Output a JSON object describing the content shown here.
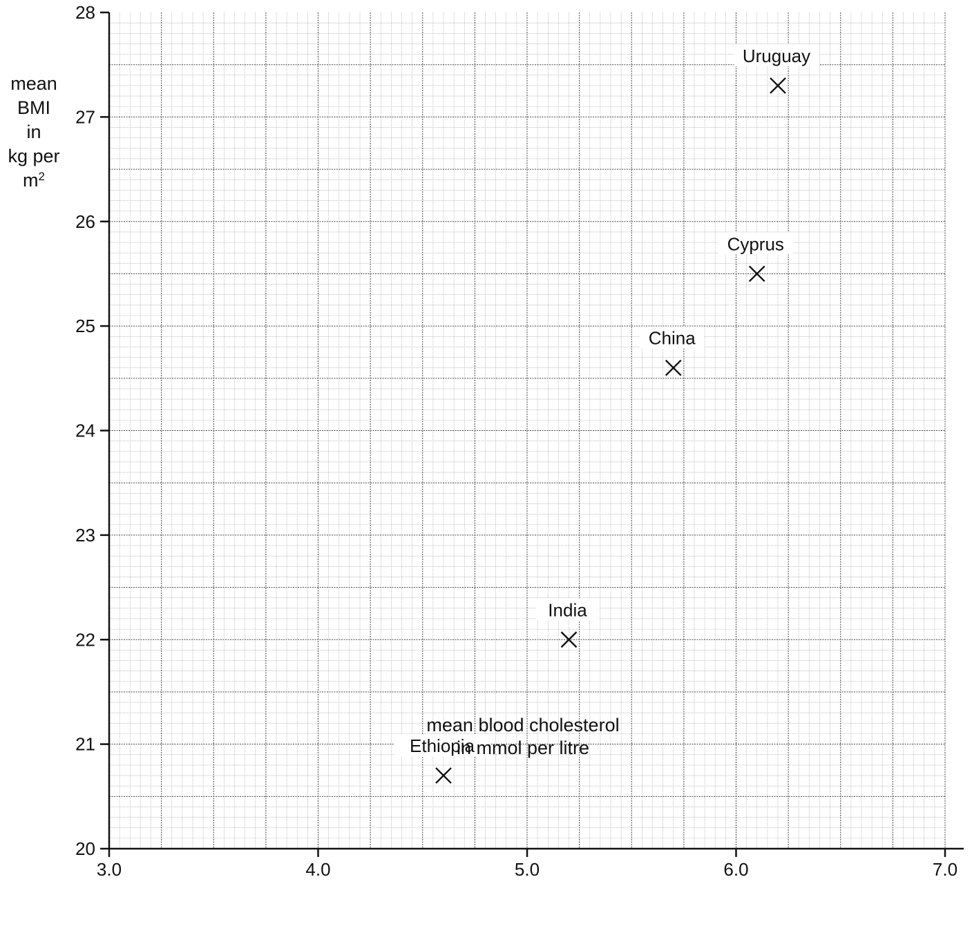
{
  "chart_data": {
    "type": "scatter",
    "title": "",
    "xlabel": [
      "mean blood cholesterol",
      "in mmol per litre"
    ],
    "ylabel": [
      "mean",
      "BMI",
      "in",
      "kg per",
      "m",
      "2"
    ],
    "xlim": [
      3.0,
      7.0
    ],
    "ylim": [
      20,
      28
    ],
    "x_ticks": [
      "3.0",
      "4.0",
      "5.0",
      "6.0",
      "7.0"
    ],
    "y_ticks": [
      "20",
      "21",
      "22",
      "23",
      "24",
      "25",
      "26",
      "27",
      "28"
    ],
    "grid": true,
    "marker": "x",
    "points": [
      {
        "label": "Uruguay",
        "x": 6.2,
        "y": 27.3
      },
      {
        "label": "Cyprus",
        "x": 6.1,
        "y": 25.5
      },
      {
        "label": "China",
        "x": 5.7,
        "y": 24.6
      },
      {
        "label": "India",
        "x": 5.2,
        "y": 22.0
      },
      {
        "label": "Ethiopia",
        "x": 4.6,
        "y": 20.7
      }
    ]
  }
}
